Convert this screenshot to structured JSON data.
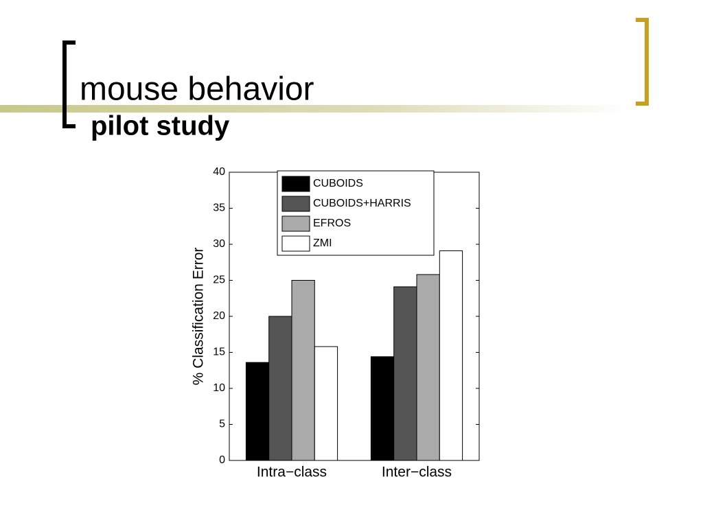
{
  "slide": {
    "title": "mouse behavior",
    "subtitle": "pilot study"
  },
  "chart_data": {
    "type": "bar",
    "y_label": "% Classification Error",
    "categories": [
      "Intra−class",
      "Inter−class"
    ],
    "series": [
      {
        "name": "CUBOIDS",
        "color": "#000000",
        "values": [
          13.6,
          14.4
        ]
      },
      {
        "name": "CUBOIDS+HARRIS",
        "color": "#555555",
        "values": [
          20,
          24.1
        ]
      },
      {
        "name": "EFROS",
        "color": "#aaaaaa",
        "values": [
          25,
          25.8
        ]
      },
      {
        "name": "ZMI",
        "color": "#ffffff",
        "values": [
          15.8,
          29.1
        ]
      }
    ],
    "ylim": [
      0,
      40
    ],
    "yticks": [
      0,
      5,
      10,
      15,
      20,
      25,
      30,
      35,
      40
    ],
    "legend": "upper center"
  }
}
